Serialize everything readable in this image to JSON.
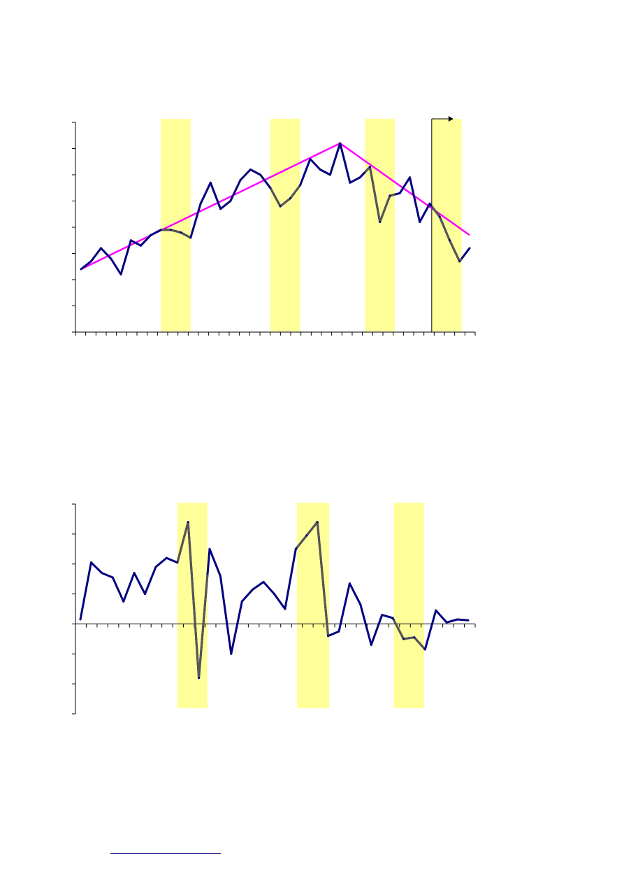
{
  "colors": {
    "series_line": "#000080",
    "trend_line": "#ff00ff",
    "shaded_band": "#ffff99",
    "band_overlay_line": "#555555",
    "axis": "#000000",
    "footnote_rule": "#000080"
  },
  "chart_data": [
    {
      "type": "line",
      "title": "",
      "xlabel": "",
      "ylabel": "",
      "grid": false,
      "x_tick_count": 40,
      "y_tick_count": 8,
      "ylim": [
        0,
        8
      ],
      "series": [
        {
          "values": [
            2.4,
            2.7,
            3.2,
            2.8,
            2.2,
            3.5,
            3.3,
            3.7,
            3.9,
            3.9,
            3.8,
            3.6,
            4.9,
            5.7,
            4.7,
            5.0,
            5.8,
            6.2,
            6.0,
            5.5,
            4.8,
            5.1,
            5.6,
            6.6,
            6.2,
            6.0,
            7.2,
            5.7,
            5.9,
            6.3,
            4.2,
            5.2,
            5.3,
            5.9,
            4.2,
            4.9,
            4.4,
            3.5,
            2.7,
            3.2
          ]
        }
      ],
      "trend_segments": [
        {
          "x_start": 0,
          "y_start": 2.4,
          "x_end": 26,
          "y_end": 7.2
        },
        {
          "x_start": 26,
          "y_start": 7.2,
          "x_end": 39,
          "y_end": 3.7
        }
      ],
      "shaded_bands": [
        {
          "x_start": 8,
          "x_end": 11
        },
        {
          "x_start": 19,
          "x_end": 22
        },
        {
          "x_start": 28.5,
          "x_end": 31.5
        },
        {
          "x_start": 35.2,
          "x_end": 38.2
        }
      ],
      "marker_x": 35.2
    },
    {
      "type": "line",
      "title": "",
      "xlabel": "",
      "ylabel": "",
      "grid": false,
      "x_tick_count": 38,
      "y_tick_count": 7,
      "ylim": [
        -3,
        4
      ],
      "series": [
        {
          "values": [
            0.15,
            2.05,
            1.7,
            1.55,
            0.75,
            1.7,
            1.0,
            1.9,
            2.2,
            2.05,
            3.4,
            -1.8,
            2.5,
            1.6,
            -1.0,
            0.75,
            1.15,
            1.4,
            1.0,
            0.5,
            2.5,
            2.95,
            3.4,
            -0.4,
            -0.25,
            1.35,
            0.65,
            -0.7,
            0.3,
            0.2,
            -0.5,
            -0.45,
            -0.85,
            0.45,
            0.05,
            0.15,
            0.12
          ]
        }
      ],
      "shaded_bands": [
        {
          "x_start": 9,
          "x_end": 11.8
        },
        {
          "x_start": 20.1,
          "x_end": 23.1
        },
        {
          "x_start": 29.1,
          "x_end": 31.9
        }
      ]
    }
  ]
}
